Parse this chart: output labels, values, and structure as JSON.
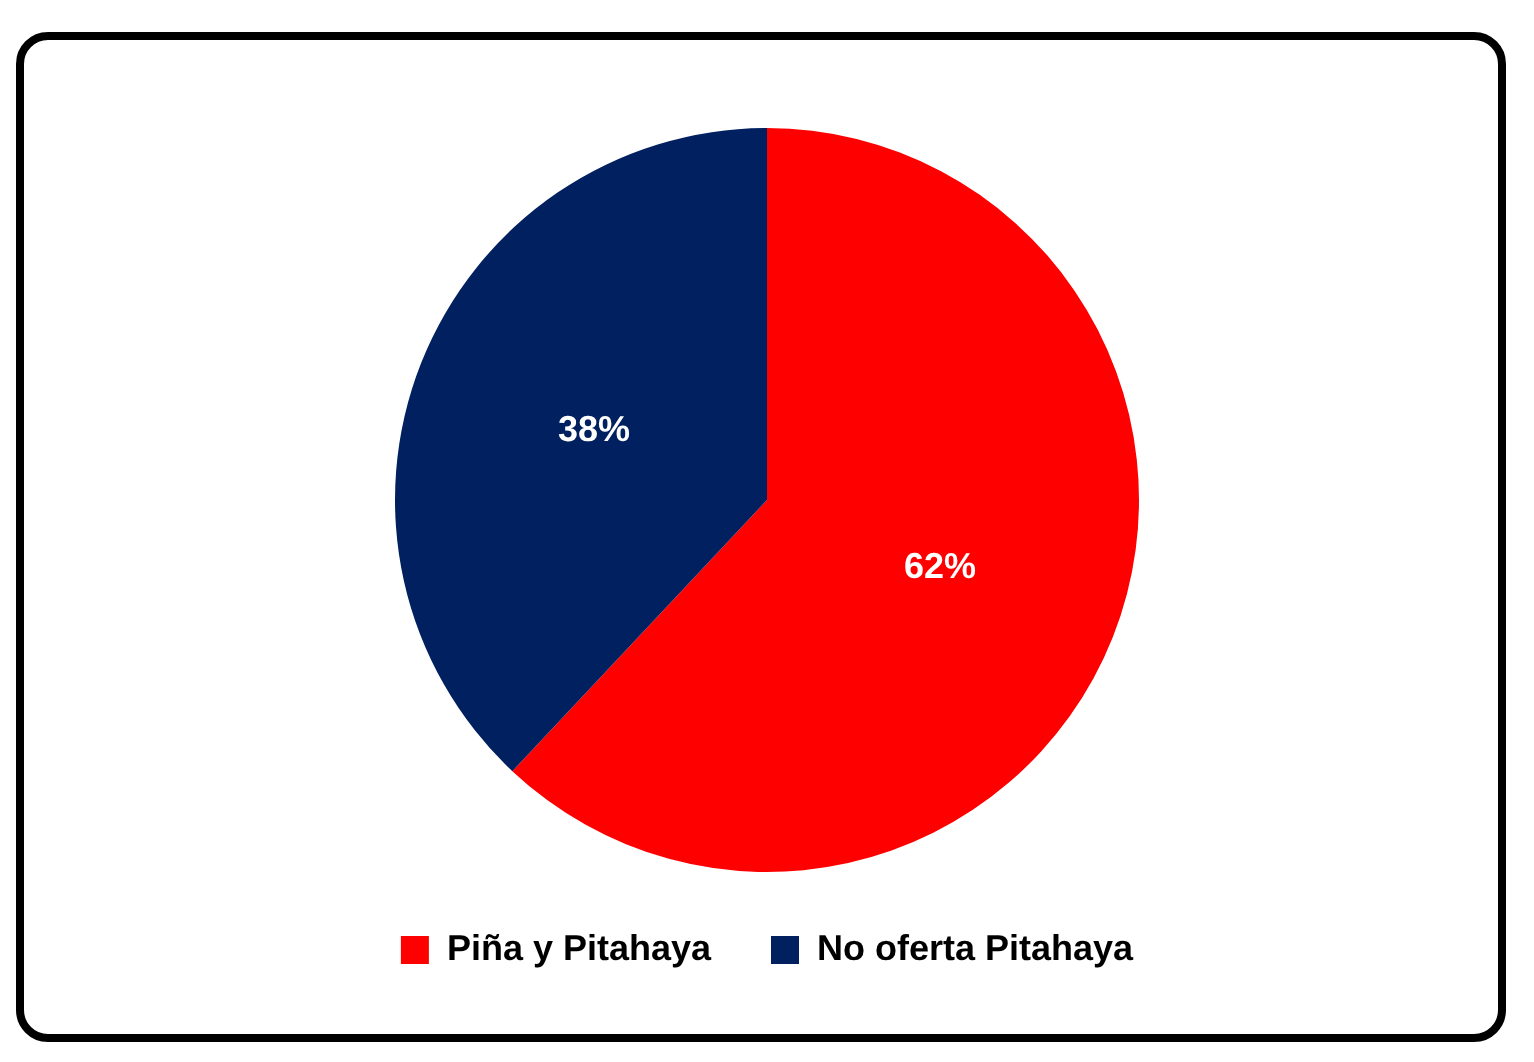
{
  "chart_data": {
    "type": "pie",
    "categories": [
      "Piña y Pitahaya",
      "No oferta Pitahaya"
    ],
    "values": [
      62,
      38
    ],
    "colors": [
      "#ff0000",
      "#002060"
    ],
    "value_labels": [
      "62%",
      "38%"
    ],
    "legend": "bottom"
  }
}
